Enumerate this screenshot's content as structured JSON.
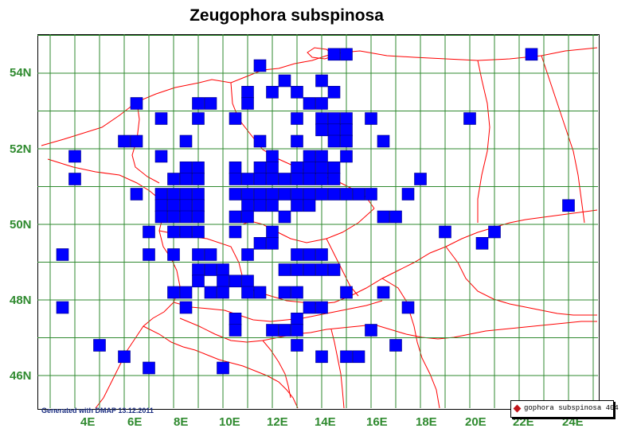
{
  "title": "Zeugophora subspinosa",
  "credit": "Generated with DMAP 13.12.2011",
  "legend": {
    "label": "gophora subspinosa 404",
    "marker_color": "#c0141a"
  },
  "colors": {
    "grid": "#2f8a2f",
    "borders": "#ff0000",
    "cells": "#0000ff",
    "labels": "#2f8a2f"
  },
  "axes": {
    "lat_labels": [
      "54N",
      "52N",
      "50N",
      "48N",
      "46N"
    ],
    "lon_labels": [
      "4E",
      "6E",
      "8E",
      "10E",
      "12E",
      "14E",
      "16E",
      "18E",
      "20E",
      "22E",
      "24E"
    ]
  },
  "grid_step_deg": {
    "lon": 1,
    "lat": 1
  },
  "records": [
    [
      21.5,
      54.5
    ],
    [
      13.5,
      54.5
    ],
    [
      10.5,
      54.2
    ],
    [
      14.0,
      54.5
    ],
    [
      11.5,
      53.8
    ],
    [
      13.0,
      53.8
    ],
    [
      12.0,
      53.5
    ],
    [
      13.5,
      53.5
    ],
    [
      10.0,
      53.5
    ],
    [
      11.0,
      53.5
    ],
    [
      8.0,
      53.2
    ],
    [
      8.5,
      53.2
    ],
    [
      10.0,
      53.2
    ],
    [
      12.5,
      53.2
    ],
    [
      13.0,
      53.2
    ],
    [
      5.5,
      53.2
    ],
    [
      6.5,
      52.8
    ],
    [
      8.0,
      52.8
    ],
    [
      9.5,
      52.8
    ],
    [
      12.0,
      52.8
    ],
    [
      13.0,
      52.8
    ],
    [
      13.5,
      52.8
    ],
    [
      14.0,
      52.8
    ],
    [
      15.0,
      52.8
    ],
    [
      19.0,
      52.8
    ],
    [
      13.0,
      52.5
    ],
    [
      13.5,
      52.5
    ],
    [
      14.0,
      52.5
    ],
    [
      5.0,
      52.2
    ],
    [
      5.5,
      52.2
    ],
    [
      7.5,
      52.2
    ],
    [
      10.5,
      52.2
    ],
    [
      12.0,
      52.2
    ],
    [
      13.5,
      52.2
    ],
    [
      14.0,
      52.2
    ],
    [
      15.5,
      52.2
    ],
    [
      3.0,
      51.8
    ],
    [
      6.5,
      51.8
    ],
    [
      11.0,
      51.8
    ],
    [
      12.5,
      51.8
    ],
    [
      13.0,
      51.8
    ],
    [
      14.0,
      51.8
    ],
    [
      7.5,
      51.5
    ],
    [
      8.0,
      51.5
    ],
    [
      9.5,
      51.5
    ],
    [
      10.5,
      51.5
    ],
    [
      11.0,
      51.5
    ],
    [
      12.0,
      51.5
    ],
    [
      12.5,
      51.5
    ],
    [
      13.0,
      51.5
    ],
    [
      13.5,
      51.5
    ],
    [
      3.0,
      51.2
    ],
    [
      7.0,
      51.2
    ],
    [
      7.5,
      51.2
    ],
    [
      8.0,
      51.2
    ],
    [
      9.5,
      51.2
    ],
    [
      10.0,
      51.2
    ],
    [
      10.5,
      51.2
    ],
    [
      11.0,
      51.2
    ],
    [
      11.5,
      51.2
    ],
    [
      12.0,
      51.2
    ],
    [
      12.5,
      51.2
    ],
    [
      13.0,
      51.2
    ],
    [
      13.5,
      51.2
    ],
    [
      17.0,
      51.2
    ],
    [
      5.5,
      50.8
    ],
    [
      6.5,
      50.8
    ],
    [
      7.0,
      50.8
    ],
    [
      7.5,
      50.8
    ],
    [
      8.0,
      50.8
    ],
    [
      9.5,
      50.8
    ],
    [
      10.0,
      50.8
    ],
    [
      10.5,
      50.8
    ],
    [
      11.0,
      50.8
    ],
    [
      11.5,
      50.8
    ],
    [
      12.0,
      50.8
    ],
    [
      12.5,
      50.8
    ],
    [
      13.0,
      50.8
    ],
    [
      13.5,
      50.8
    ],
    [
      14.0,
      50.8
    ],
    [
      14.5,
      50.8
    ],
    [
      15.0,
      50.8
    ],
    [
      16.5,
      50.8
    ],
    [
      6.5,
      50.5
    ],
    [
      7.0,
      50.5
    ],
    [
      7.5,
      50.5
    ],
    [
      8.0,
      50.5
    ],
    [
      10.0,
      50.5
    ],
    [
      10.5,
      50.5
    ],
    [
      11.0,
      50.5
    ],
    [
      12.0,
      50.5
    ],
    [
      12.5,
      50.5
    ],
    [
      23.0,
      50.5
    ],
    [
      6.5,
      50.2
    ],
    [
      7.0,
      50.2
    ],
    [
      7.5,
      50.2
    ],
    [
      8.0,
      50.2
    ],
    [
      9.5,
      50.2
    ],
    [
      10.0,
      50.2
    ],
    [
      11.5,
      50.2
    ],
    [
      15.5,
      50.2
    ],
    [
      16.0,
      50.2
    ],
    [
      6.0,
      49.8
    ],
    [
      7.0,
      49.8
    ],
    [
      7.5,
      49.8
    ],
    [
      8.0,
      49.8
    ],
    [
      9.5,
      49.8
    ],
    [
      11.0,
      49.8
    ],
    [
      18.0,
      49.8
    ],
    [
      20.0,
      49.8
    ],
    [
      10.5,
      49.5
    ],
    [
      11.0,
      49.5
    ],
    [
      19.5,
      49.5
    ],
    [
      2.5,
      49.2
    ],
    [
      6.0,
      49.2
    ],
    [
      7.0,
      49.2
    ],
    [
      8.0,
      49.2
    ],
    [
      8.5,
      49.2
    ],
    [
      10.0,
      49.2
    ],
    [
      12.0,
      49.2
    ],
    [
      12.5,
      49.2
    ],
    [
      13.0,
      49.2
    ],
    [
      8.0,
      48.8
    ],
    [
      8.5,
      48.8
    ],
    [
      9.0,
      48.8
    ],
    [
      11.5,
      48.8
    ],
    [
      12.0,
      48.8
    ],
    [
      12.5,
      48.8
    ],
    [
      13.0,
      48.8
    ],
    [
      13.5,
      48.8
    ],
    [
      8.0,
      48.5
    ],
    [
      9.0,
      48.5
    ],
    [
      9.5,
      48.5
    ],
    [
      10.0,
      48.5
    ],
    [
      7.0,
      48.2
    ],
    [
      7.5,
      48.2
    ],
    [
      8.5,
      48.2
    ],
    [
      9.0,
      48.2
    ],
    [
      10.0,
      48.2
    ],
    [
      10.5,
      48.2
    ],
    [
      11.5,
      48.2
    ],
    [
      12.0,
      48.2
    ],
    [
      14.0,
      48.2
    ],
    [
      15.5,
      48.2
    ],
    [
      2.5,
      47.8
    ],
    [
      7.5,
      47.8
    ],
    [
      12.5,
      47.8
    ],
    [
      13.0,
      47.8
    ],
    [
      16.5,
      47.8
    ],
    [
      9.5,
      47.5
    ],
    [
      12.0,
      47.5
    ],
    [
      9.5,
      47.2
    ],
    [
      11.0,
      47.2
    ],
    [
      11.5,
      47.2
    ],
    [
      12.0,
      47.2
    ],
    [
      15.0,
      47.2
    ],
    [
      4.0,
      46.8
    ],
    [
      12.0,
      46.8
    ],
    [
      16.0,
      46.8
    ],
    [
      5.0,
      46.5
    ],
    [
      13.0,
      46.5
    ],
    [
      14.0,
      46.5
    ],
    [
      14.5,
      46.5
    ],
    [
      6.0,
      46.2
    ],
    [
      9.0,
      46.2
    ]
  ]
}
